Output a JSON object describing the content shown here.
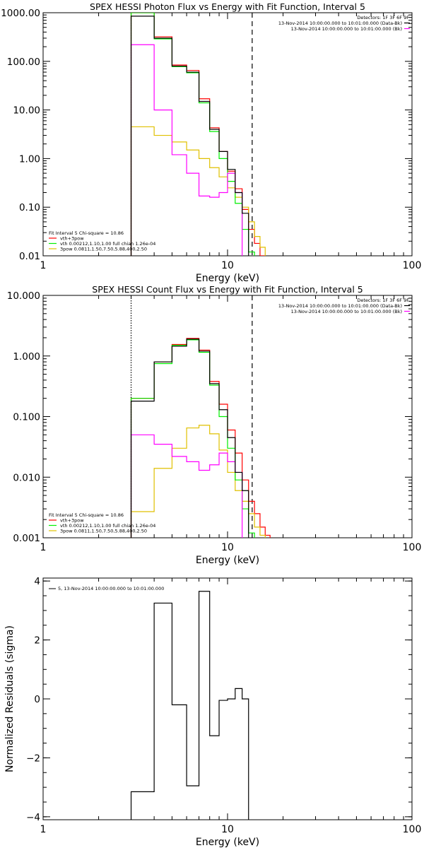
{
  "panels": [
    {
      "key": "photon",
      "title": "SPEX HESSI Photon Flux vs Energy with Fit Function, Interval 5",
      "xlabel": "Energy (keV)",
      "ylabel": "",
      "xscale": "log",
      "yscale": "log",
      "xlim": [
        1,
        100
      ],
      "ylim": [
        0.01,
        1000
      ],
      "xticks": [
        {
          "v": 1,
          "label": "1"
        },
        {
          "v": 10,
          "label": "10"
        },
        {
          "v": 100,
          "label": "100"
        }
      ],
      "yticks": [
        {
          "v": 0.01,
          "label": "0.01"
        },
        {
          "v": 0.1,
          "label": "0.10"
        },
        {
          "v": 1,
          "label": "1.00"
        },
        {
          "v": 10,
          "label": "10.00"
        },
        {
          "v": 100,
          "label": "100.00"
        },
        {
          "v": 1000,
          "label": "1000.00"
        }
      ],
      "vlines": [
        {
          "x": 3.0,
          "style": "dotted",
          "color": "#ff8000"
        },
        {
          "x": 13.6,
          "style": "dashed",
          "color": "#000000"
        }
      ],
      "legend_top": {
        "header": "Detectors: 1F 3F 6F 9F",
        "entries": [
          {
            "label": "13-Nov-2014 10:00:00.000 to 10:01:00.000 (Data-Bk)",
            "color": "#000000"
          },
          {
            "label": "13-Nov-2014 10:00:00.000 to 10:01:00.000 (Bk)",
            "color": "#ff00ff"
          }
        ]
      },
      "legend_bottom": {
        "header": "Fit Interval 5   Chi-square = 10.86",
        "entries": [
          {
            "label": "vth+3pow",
            "color": "#ff0000"
          },
          {
            "label": "vth 0.00212,1.10,1.00  full chian 1.26e-04",
            "color": "#00ee00"
          },
          {
            "label": "3pow 0.0811,1.50,7.50,5.88,400,2.50",
            "color": "#e0c000"
          }
        ]
      }
    },
    {
      "key": "count",
      "title": "SPEX HESSI Count Flux vs Energy with Fit Function, Interval 5",
      "xlabel": "Energy (keV)",
      "ylabel": "",
      "xscale": "log",
      "yscale": "log",
      "xlim": [
        1,
        100
      ],
      "ylim": [
        0.001,
        10
      ],
      "xticks": [
        {
          "v": 1,
          "label": "1"
        },
        {
          "v": 10,
          "label": "10"
        },
        {
          "v": 100,
          "label": "100"
        }
      ],
      "yticks": [
        {
          "v": 0.001,
          "label": "0.001"
        },
        {
          "v": 0.01,
          "label": "0.010"
        },
        {
          "v": 0.1,
          "label": "0.100"
        },
        {
          "v": 1,
          "label": "1.000"
        },
        {
          "v": 10,
          "label": "10.000"
        }
      ],
      "vlines": [
        {
          "x": 3.0,
          "style": "dotted",
          "color": "#000000"
        },
        {
          "x": 13.6,
          "style": "dashed",
          "color": "#000000"
        }
      ],
      "legend_top": {
        "header": "Detectors: 1F 3F 6F 9F",
        "entries": [
          {
            "label": "13-Nov-2014 10:00:00.000 to 10:01:00.000 (Data-Bk)",
            "color": "#000000"
          },
          {
            "label": "13-Nov-2014 10:00:00.000 to 10:01:00.000 (Bk)",
            "color": "#ff00ff"
          }
        ]
      },
      "legend_bottom": {
        "header": "Fit Interval 5   Chi-square = 10.86",
        "entries": [
          {
            "label": "vth+3pow",
            "color": "#ff0000"
          },
          {
            "label": "vth 0.00212,1.10,1.00  full chian 1.26e-04",
            "color": "#00ee00"
          },
          {
            "label": "3pow 0.0811,1.50,7.50,5.88,400,2.50",
            "color": "#e0c000"
          }
        ]
      }
    },
    {
      "key": "resid",
      "title": "",
      "xlabel": "Energy (keV)",
      "ylabel": "Normalized Residuals (sigma)",
      "xscale": "log",
      "yscale": "linear",
      "xlim": [
        1,
        100
      ],
      "ylim": [
        -4.1,
        4.1
      ],
      "xticks": [
        {
          "v": 1,
          "label": "1"
        },
        {
          "v": 10,
          "label": "10"
        },
        {
          "v": 100,
          "label": "100"
        }
      ],
      "yticks": [
        {
          "v": -4,
          "label": "−4"
        },
        {
          "v": -2,
          "label": "−2"
        },
        {
          "v": 0,
          "label": "0"
        },
        {
          "v": 2,
          "label": "2"
        },
        {
          "v": 4,
          "label": "4"
        }
      ],
      "vlines": [],
      "legend_top": {
        "header": "",
        "entries": [
          {
            "label": "5, 13-Nov-2014 10:00:00.000 to 10:01:00.000",
            "color": "#000000"
          }
        ]
      },
      "legend_bottom": null
    }
  ],
  "chart_data": [
    {
      "type": "line",
      "title": "SPEX HESSI Photon Flux vs Energy with Fit Function, Interval 5",
      "xlabel": "Energy (keV)",
      "ylabel": "",
      "xlim": [
        1,
        100
      ],
      "ylim": [
        0.01,
        1000
      ],
      "xscale": "log",
      "yscale": "log",
      "grid": false,
      "bin_edges": [
        3.0,
        4.0,
        5.0,
        6.0,
        7.0,
        8.0,
        9.0,
        10.0,
        11.0,
        12.0,
        13.0,
        14.0,
        15.0,
        16.0,
        17.0
      ],
      "series": [
        {
          "name": "13-Nov-2014 10:00:00.000 to 10:01:00.000 (Data-Bk)",
          "color": "#000000",
          "values": [
            850,
            300,
            80,
            60,
            15,
            4,
            1.4,
            0.6,
            0.2,
            0.075
          ]
        },
        {
          "name": "13-Nov-2014 10:00:00.000 to 10:01:00.000 (Bk)",
          "color": "#ff00ff",
          "values": [
            220,
            10,
            1.2,
            0.5,
            0.17,
            0.16,
            0.2,
            0.5,
            0.2
          ]
        },
        {
          "name": "vth+3pow",
          "color": "#ff0000",
          "values": [
            1000,
            320,
            84,
            65,
            17,
            4.3,
            1.4,
            0.55,
            0.24,
            0.09,
            0.035,
            0.018,
            0.01
          ]
        },
        {
          "name": "vth 0.00212,1.10,1.00  full chian 1.26e-04",
          "color": "#00ee00",
          "values": [
            1000,
            290,
            78,
            58,
            14,
            3.6,
            1.0,
            0.34,
            0.12,
            0.035,
            0.012
          ]
        },
        {
          "name": "3pow 0.0811,1.50,7.50,5.88,400,2.50",
          "color": "#e0c000",
          "values": [
            4.5,
            3.0,
            2.2,
            1.5,
            1.0,
            0.65,
            0.42,
            0.25,
            0.16,
            0.1,
            0.05,
            0.025,
            0.015
          ]
        }
      ]
    },
    {
      "type": "line",
      "title": "SPEX HESSI Count Flux vs Energy with Fit Function, Interval 5",
      "xlabel": "Energy (keV)",
      "ylabel": "",
      "xlim": [
        1,
        100
      ],
      "ylim": [
        0.001,
        10
      ],
      "xscale": "log",
      "yscale": "log",
      "grid": false,
      "bin_edges": [
        3.0,
        4.0,
        5.0,
        6.0,
        7.0,
        8.0,
        9.0,
        10.0,
        11.0,
        12.0,
        13.0,
        14.0,
        15.0,
        16.0,
        17.0,
        18.0
      ],
      "series": [
        {
          "name": "13-Nov-2014 10:00:00.000 to 10:01:00.000 (Data-Bk)",
          "color": "#000000",
          "values": [
            0.18,
            0.8,
            1.45,
            1.9,
            1.2,
            0.35,
            0.13,
            0.045,
            0.012,
            0.006
          ]
        },
        {
          "name": "13-Nov-2014 10:00:00.000 to 10:01:00.000 (Bk)",
          "color": "#ff00ff",
          "values": [
            0.05,
            0.035,
            0.022,
            0.018,
            0.013,
            0.016,
            0.025,
            0.018,
            0.012
          ]
        },
        {
          "name": "vth+3pow",
          "color": "#ff0000",
          "values": [
            0.2,
            0.8,
            1.55,
            1.95,
            1.25,
            0.38,
            0.16,
            0.06,
            0.025,
            0.009,
            0.004,
            0.0025,
            0.0015,
            0.0011
          ]
        },
        {
          "name": "vth 0.00212,1.10,1.00  full chian 1.26e-04",
          "color": "#00ee00",
          "values": [
            0.2,
            0.75,
            1.5,
            1.85,
            1.15,
            0.33,
            0.1,
            0.03,
            0.009,
            0.003,
            0.0012
          ]
        },
        {
          "name": "3pow 0.0811,1.50,7.50,5.88,400,2.50",
          "color": "#e0c000",
          "values": [
            0.0027,
            0.014,
            0.03,
            0.065,
            0.072,
            0.052,
            0.028,
            0.012,
            0.006,
            0.004,
            0.0025,
            0.0015,
            0.0011
          ]
        }
      ]
    },
    {
      "type": "line",
      "title": "",
      "xlabel": "Energy (keV)",
      "ylabel": "Normalized Residuals (sigma)",
      "xlim": [
        1,
        100
      ],
      "ylim": [
        -4.1,
        4.1
      ],
      "xscale": "log",
      "yscale": "linear",
      "grid": false,
      "bin_edges": [
        3.0,
        4.0,
        5.0,
        6.0,
        7.0,
        8.0,
        9.0,
        10.0,
        11.0,
        12.0,
        13.0,
        14.0
      ],
      "series": [
        {
          "name": "5, 13-Nov-2014 10:00:00.000 to 10:01:00.000",
          "color": "#000000",
          "values": [
            -3.15,
            3.25,
            -0.2,
            -2.95,
            3.65,
            -1.25,
            -0.05,
            0.0,
            0.35,
            0.0
          ]
        }
      ]
    }
  ]
}
